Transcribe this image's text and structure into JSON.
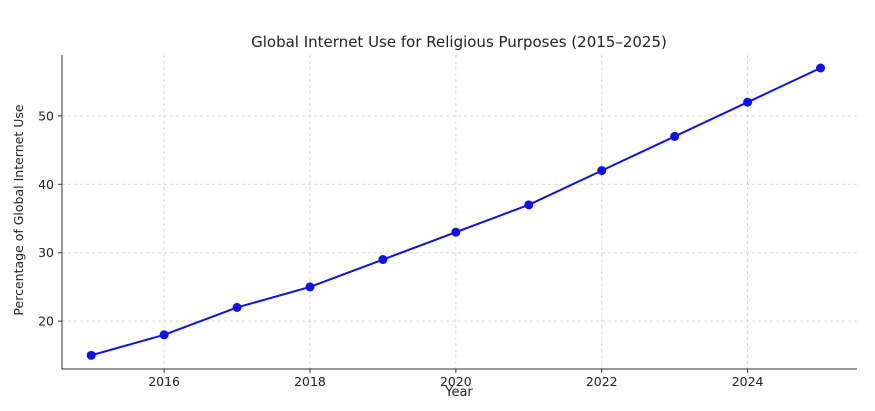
{
  "chart_data": {
    "type": "line",
    "title": "Global Internet Use for Religious Purposes (2015–2025)",
    "xlabel": "Year",
    "ylabel": "Percentage of Global Internet Use",
    "x": [
      2015,
      2016,
      2017,
      2018,
      2019,
      2020,
      2021,
      2022,
      2023,
      2024,
      2025
    ],
    "series": [
      {
        "values": [
          15,
          18,
          22,
          25,
          29,
          33,
          37,
          42,
          47,
          52,
          57
        ],
        "color": "#1010ee"
      }
    ],
    "xlim": [
      2014.6,
      2025.5
    ],
    "ylim": [
      13,
      58.9
    ],
    "xticks": [
      "2016",
      "2018",
      "2020",
      "2022",
      "2024"
    ],
    "yticks": [
      "20",
      "30",
      "40",
      "50"
    ],
    "grid": true
  }
}
